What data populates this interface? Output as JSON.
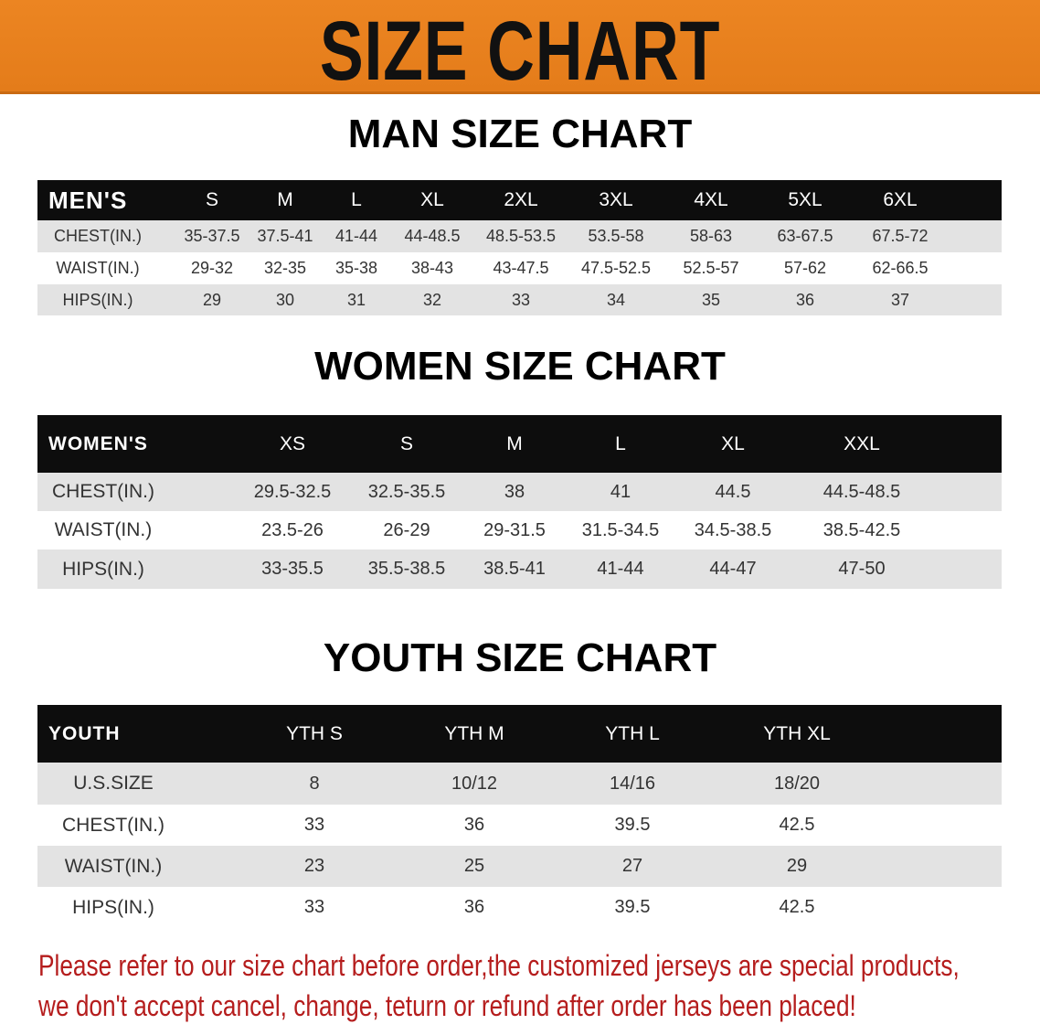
{
  "banner_title": "SIZE CHART",
  "colors": {
    "banner": "#e8801f",
    "header_row": "#0d0d0d",
    "stripe": "#e3e3e3",
    "notice_text": "#b51d1d"
  },
  "men": {
    "title": "MAN SIZE CHART",
    "header": [
      "MEN'S",
      "S",
      "M",
      "L",
      "XL",
      "2XL",
      "3XL",
      "4XL",
      "5XL",
      "6XL"
    ],
    "rows": [
      [
        "CHEST(IN.)",
        "35-37.5",
        "37.5-41",
        "41-44",
        "44-48.5",
        "48.5-53.5",
        "53.5-58",
        "58-63",
        "63-67.5",
        "67.5-72"
      ],
      [
        "WAIST(IN.)",
        "29-32",
        "32-35",
        "35-38",
        "38-43",
        "43-47.5",
        "47.5-52.5",
        "52.5-57",
        "57-62",
        "62-66.5"
      ],
      [
        "HIPS(IN.)",
        "29",
        "30",
        "31",
        "32",
        "33",
        "34",
        "35",
        "36",
        "37"
      ]
    ]
  },
  "women": {
    "title": "WOMEN SIZE CHART",
    "header": [
      "WOMEN'S",
      "XS",
      "S",
      "M",
      "L",
      "XL",
      "XXL"
    ],
    "rows": [
      [
        "CHEST(IN.)",
        "29.5-32.5",
        "32.5-35.5",
        "38",
        "41",
        "44.5",
        "44.5-48.5"
      ],
      [
        "WAIST(IN.)",
        "23.5-26",
        "26-29",
        "29-31.5",
        "31.5-34.5",
        "34.5-38.5",
        "38.5-42.5"
      ],
      [
        "HIPS(IN.)",
        "33-35.5",
        "35.5-38.5",
        "38.5-41",
        "41-44",
        "44-47",
        "47-50"
      ]
    ]
  },
  "youth": {
    "title": "YOUTH SIZE CHART",
    "header": [
      "YOUTH",
      "YTH S",
      "YTH M",
      "YTH L",
      "YTH XL"
    ],
    "rows": [
      [
        "U.S.SIZE",
        "8",
        "10/12",
        "14/16",
        "18/20"
      ],
      [
        "CHEST(IN.)",
        "33",
        "36",
        "39.5",
        "42.5"
      ],
      [
        "WAIST(IN.)",
        "23",
        "25",
        "27",
        "29"
      ],
      [
        "HIPS(IN.)",
        "33",
        "36",
        "39.5",
        "42.5"
      ]
    ]
  },
  "notice": {
    "line1": "Please refer to our size chart before order,the customized jerseys are special products,",
    "line2": "we don't accept cancel, change, teturn or refund after order has been placed!"
  }
}
